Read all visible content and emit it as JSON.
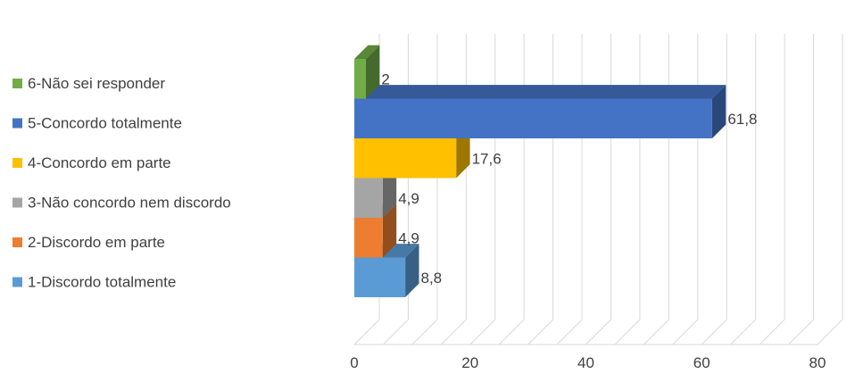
{
  "chart_data": {
    "type": "bar",
    "orientation": "horizontal",
    "style": "3d",
    "categories": [
      "1-Discordo totalmente",
      "2-Discordo em parte",
      "3-Não concordo nem discordo",
      "4-Concordo em parte",
      "5-Concordo totalmente",
      "6-Não sei responder"
    ],
    "values": [
      8.8,
      4.9,
      4.9,
      17.6,
      61.8,
      2
    ],
    "value_labels": [
      "8,8",
      "4,9",
      "4,9",
      "17,6",
      "61,8",
      "2"
    ],
    "colors": [
      "#5b9bd5",
      "#ed7d31",
      "#a5a5a5",
      "#ffc000",
      "#4472c4",
      "#70ad47"
    ],
    "xlim": [
      0,
      80
    ],
    "x_ticks": [
      0,
      20,
      40,
      60,
      80
    ],
    "x_tick_labels": [
      "0",
      "20",
      "40",
      "60",
      "80"
    ],
    "grid": true,
    "legend_position": "left",
    "legend_order": [
      5,
      4,
      3,
      2,
      1,
      0
    ],
    "title": "",
    "xlabel": "",
    "ylabel": ""
  }
}
